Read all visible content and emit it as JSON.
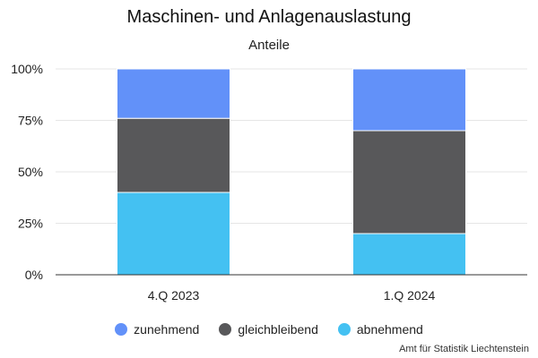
{
  "title": "Maschinen- und Anlagenauslastung",
  "subtitle": "Anteile",
  "source": "Amt für Statistik Liechtenstein",
  "chart_data": {
    "type": "bar",
    "stacked": true,
    "categories": [
      "4.Q 2023",
      "1.Q 2024"
    ],
    "series": [
      {
        "name": "abnehmend",
        "color": "#44c1f2",
        "values": [
          40,
          20
        ]
      },
      {
        "name": "gleichbleibend",
        "color": "#58585a",
        "values": [
          36,
          50
        ]
      },
      {
        "name": "zunehmend",
        "color": "#6291f9",
        "values": [
          24,
          30
        ]
      }
    ],
    "yticks": [
      "0%",
      "25%",
      "50%",
      "75%",
      "100%"
    ],
    "ylim": [
      0,
      100
    ],
    "grid": true,
    "legend_position": "bottom"
  },
  "legend": [
    {
      "label": "zunehmend",
      "color": "#6291f9"
    },
    {
      "label": "gleichbleibend",
      "color": "#58585a"
    },
    {
      "label": "abnehmend",
      "color": "#44c1f2"
    }
  ]
}
